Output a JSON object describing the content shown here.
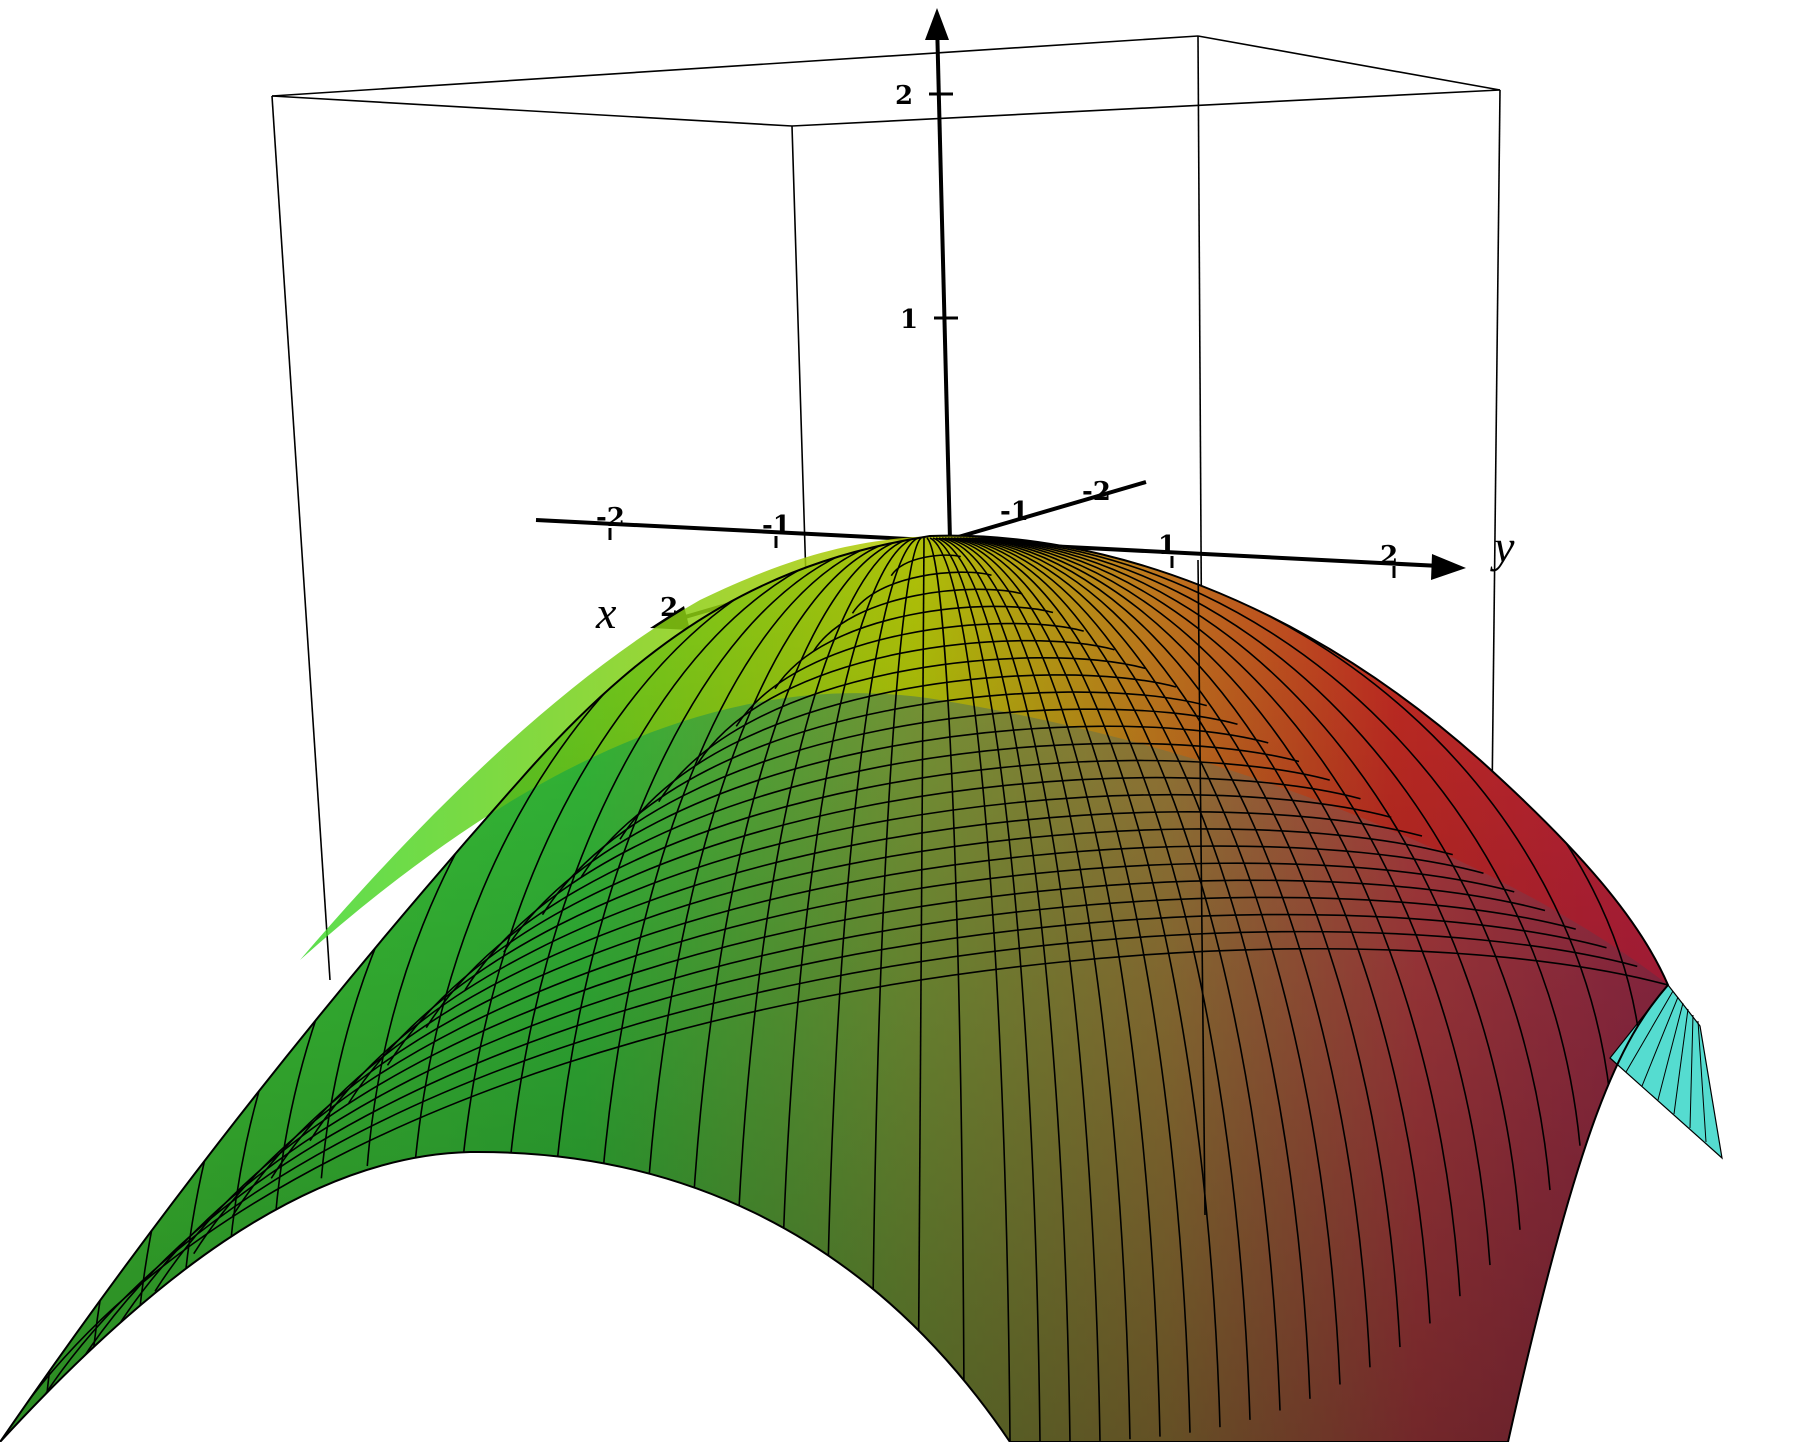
{
  "chart_data": {
    "type": "surface3d",
    "surface_shape": "downward-opening saddle-like dome, peak at origin",
    "grid_lines_visible": true,
    "colors": {
      "green": "#3bd62e",
      "dark_green": "#3a8e4f",
      "yellow": "#c8c400",
      "orange": "#c8641e",
      "red": "#c81e3c",
      "mauve": "#7a4658",
      "cyan": "#55e0d2",
      "axis": "#000000",
      "box": "#000000",
      "mesh": "#000000"
    },
    "axes": {
      "x": {
        "name": "x",
        "ticks": [
          "-2",
          "-1",
          "2"
        ]
      },
      "y": {
        "name": "y",
        "ticks": [
          "-2",
          "-1",
          "1",
          "2"
        ]
      },
      "z": {
        "ticks": [
          "1",
          "2"
        ]
      }
    }
  }
}
